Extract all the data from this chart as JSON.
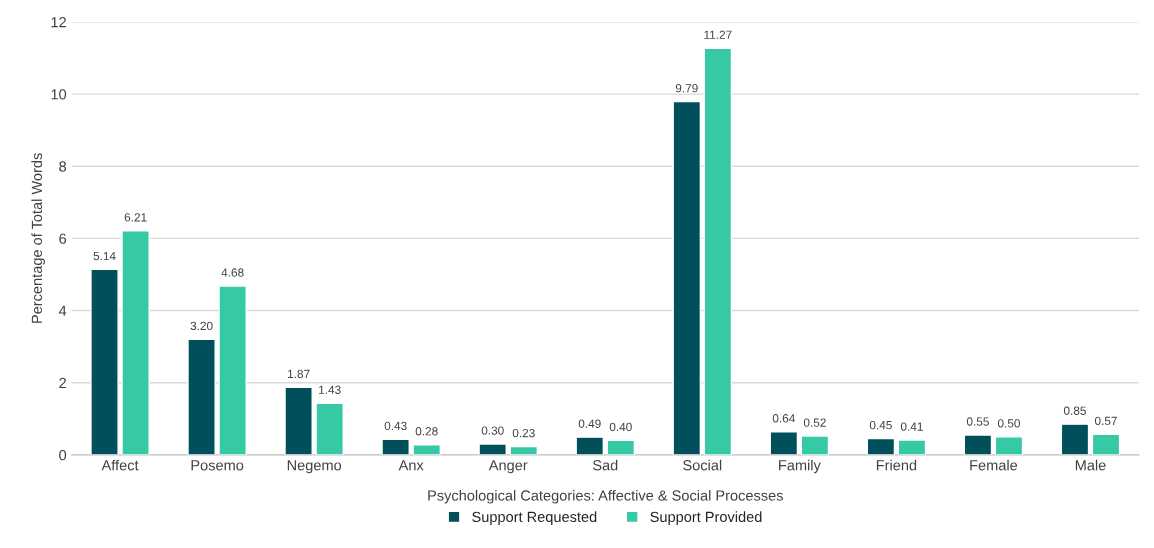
{
  "chart_data": {
    "type": "bar",
    "ylabel": "Percentage of Total Words",
    "xlabel": "Psychological Categories: Affective & Social Processes",
    "categories": [
      "Affect",
      "Posemo",
      "Negemo",
      "Anx",
      "Anger",
      "Sad",
      "Social",
      "Family",
      "Friend",
      "Female",
      "Male"
    ],
    "series": [
      {
        "name": "Support Requested",
        "color": "#004f5b",
        "values": [
          5.14,
          3.2,
          1.87,
          0.43,
          0.3,
          0.49,
          9.79,
          0.64,
          0.45,
          0.55,
          0.85
        ],
        "value_labels": [
          "5.14",
          "3.20",
          "1.87",
          "0.43",
          "0.30",
          "0.49",
          "9.79",
          "0.64",
          "0.45",
          "0.55",
          "0.85"
        ]
      },
      {
        "name": "Support Provided",
        "color": "#36c9a5",
        "values": [
          6.21,
          4.68,
          1.43,
          0.28,
          0.23,
          0.4,
          11.27,
          0.52,
          0.41,
          0.5,
          0.57
        ],
        "value_labels": [
          "6.21",
          "4.68",
          "1.43",
          "0.28",
          "0.23",
          "0.40",
          "11.27",
          "0.52",
          "0.41",
          "0.50",
          "0.57"
        ]
      }
    ],
    "ylim": [
      0,
      12
    ],
    "yticks": [
      0,
      2,
      4,
      6,
      8,
      10,
      12
    ],
    "grid": "y",
    "legend": "bottom"
  }
}
